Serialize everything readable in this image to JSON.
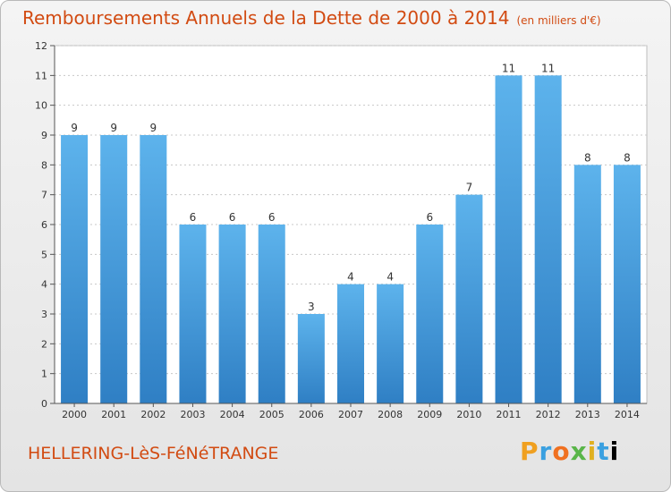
{
  "chart_data": {
    "type": "bar",
    "title": "Remboursements Annuels de la Dette de 2000 à 2014",
    "subtitle": "(en milliers d'€)",
    "categories": [
      "2000",
      "2001",
      "2002",
      "2003",
      "2004",
      "2005",
      "2006",
      "2007",
      "2008",
      "2009",
      "2010",
      "2011",
      "2012",
      "2013",
      "2014"
    ],
    "values": [
      9,
      9,
      9,
      6,
      6,
      6,
      3,
      4,
      4,
      6,
      7,
      11,
      11,
      8,
      8
    ],
    "ylim": [
      0,
      12
    ],
    "yticks": [
      0,
      1,
      2,
      3,
      4,
      5,
      6,
      7,
      8,
      9,
      10,
      11,
      12
    ],
    "grid": true,
    "bar_color": "#4aa0e0",
    "data_labels": true
  },
  "footer": {
    "commune": "HELLERING-LèS-FéNéTRANGE",
    "brand": [
      "P",
      "r",
      "o",
      "x",
      "i",
      "t",
      "i"
    ]
  },
  "colors": {
    "title": "#d24b12",
    "grid": "#c8c8c8",
    "bar_top": "#5db3ec",
    "bar_bottom": "#2f7fc4"
  }
}
